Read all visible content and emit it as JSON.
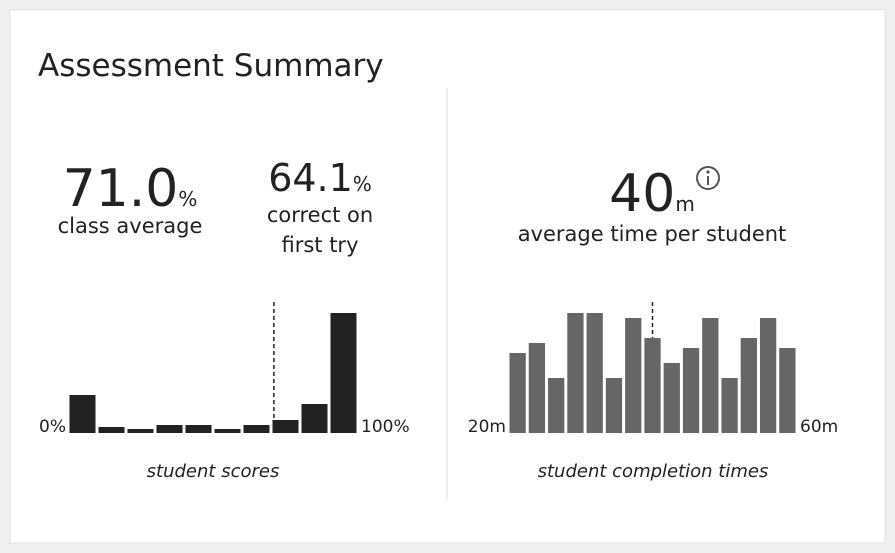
{
  "title": "Assessment Summary",
  "stats": [
    {
      "value": "71.0",
      "unit": "%",
      "label": [
        "class average"
      ]
    },
    {
      "value": "64.1",
      "unit": "%",
      "label": [
        "correct on",
        "first try"
      ]
    },
    {
      "value": "40",
      "unit": "m",
      "label": [
        "average time per student"
      ]
    }
  ],
  "chart_data": [
    {
      "type": "bar",
      "caption": "student scores",
      "color": "#222222",
      "values": [
        38,
        6,
        4,
        8,
        8,
        4,
        8,
        13,
        29,
        120
      ],
      "xlim": [
        0,
        100
      ],
      "xticks": [
        {
          "value": 0,
          "label": "0%"
        },
        {
          "value": 100,
          "label": "100%"
        }
      ],
      "ylim": [
        0,
        120
      ]
    },
    {
      "type": "bar",
      "caption": "student completion times",
      "color": "#666666",
      "values": [
        80,
        90,
        55,
        120,
        120,
        55,
        115,
        95,
        70,
        85,
        115,
        55,
        95,
        115,
        85
      ],
      "xlim": [
        20,
        60
      ],
      "xticks": [
        {
          "value": 20,
          "label": "20m"
        },
        {
          "value": 60,
          "label": "60m"
        }
      ],
      "ylim": [
        0,
        120
      ]
    }
  ]
}
